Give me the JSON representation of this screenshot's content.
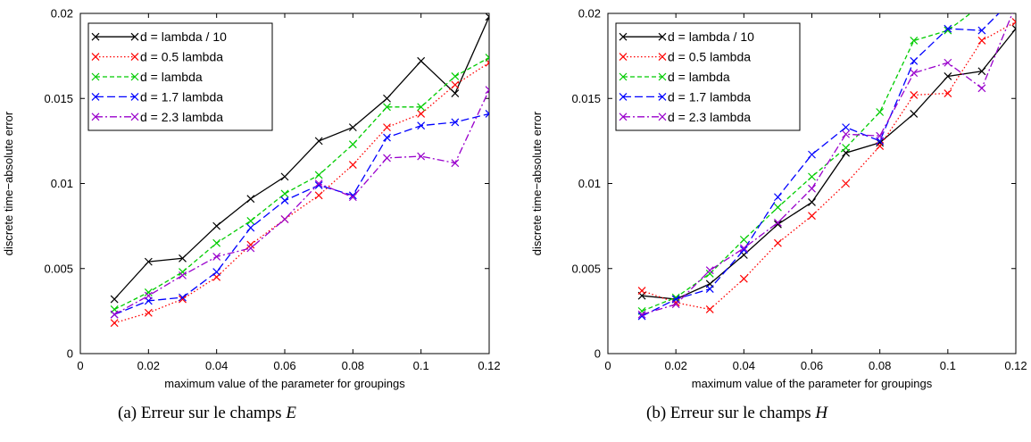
{
  "chart_data": [
    {
      "type": "line",
      "caption": {
        "prefix": "(a) Erreur sur le champs",
        "variable": "E"
      },
      "xlabel": "maximum value of the parameter for groupings",
      "ylabel": "discrete time−absolute error",
      "xlim": [
        0,
        0.12
      ],
      "ylim": [
        0,
        0.02
      ],
      "xticks": [
        0,
        0.02,
        0.04,
        0.06,
        0.08,
        0.1,
        0.12
      ],
      "xtick_labels": [
        "0",
        "0.02",
        "0.04",
        "0.06",
        "0.08",
        "0.1",
        "0.12"
      ],
      "yticks": [
        0,
        0.005,
        0.01,
        0.015,
        0.02
      ],
      "ytick_labels": [
        "0",
        "0.005",
        "0.01",
        "0.015",
        "0.02"
      ],
      "legend_position": "top-left",
      "x": [
        0.01,
        0.02,
        0.03,
        0.04,
        0.05,
        0.06,
        0.07,
        0.08,
        0.09,
        0.1,
        0.11,
        0.12
      ],
      "series": [
        {
          "name": "d = lambda / 10",
          "color": "#000000",
          "dash": "solid",
          "values": [
            0.0032,
            0.0054,
            0.0056,
            0.0075,
            0.0091,
            0.0104,
            0.0125,
            0.0133,
            0.015,
            0.0172,
            0.0153,
            0.0198
          ]
        },
        {
          "name": "d = 0.5 lambda",
          "color": "#ff0000",
          "dash": "dotted",
          "values": [
            0.0018,
            0.0024,
            0.0032,
            0.0045,
            0.0064,
            0.0079,
            0.0093,
            0.0111,
            0.0133,
            0.0141,
            0.0158,
            0.0171
          ]
        },
        {
          "name": "d =  lambda",
          "color": "#00cc00",
          "dash": "dashed",
          "values": [
            0.0026,
            0.0036,
            0.0048,
            0.0065,
            0.0078,
            0.0094,
            0.0105,
            0.0123,
            0.0145,
            0.0145,
            0.0163,
            0.0174
          ]
        },
        {
          "name": "d = 1.7 lambda",
          "color": "#0000ff",
          "dash": "longdash",
          "values": [
            0.0023,
            0.0031,
            0.0033,
            0.0048,
            0.0074,
            0.009,
            0.0099,
            0.0093,
            0.0127,
            0.0134,
            0.0136,
            0.0141
          ]
        },
        {
          "name": "d = 2.3 lambda",
          "color": "#9900cc",
          "dash": "dashdot",
          "values": [
            0.0023,
            0.0034,
            0.0046,
            0.0057,
            0.0062,
            0.0079,
            0.01,
            0.0092,
            0.0115,
            0.0116,
            0.0112,
            0.0155
          ]
        }
      ]
    },
    {
      "type": "line",
      "caption": {
        "prefix": "(b) Erreur sur le champs",
        "variable": "H"
      },
      "xlabel": "maximum value of the parameter for groupings",
      "ylabel": "discrete time−absolute error",
      "xlim": [
        0,
        0.12
      ],
      "ylim": [
        0,
        0.02
      ],
      "xticks": [
        0,
        0.02,
        0.04,
        0.06,
        0.08,
        0.1,
        0.12
      ],
      "xtick_labels": [
        "0",
        "0.02",
        "0.04",
        "0.06",
        "0.08",
        "0.1",
        "0.12"
      ],
      "yticks": [
        0,
        0.005,
        0.01,
        0.015,
        0.02
      ],
      "ytick_labels": [
        "0",
        "0.005",
        "0.01",
        "0.015",
        "0.02"
      ],
      "legend_position": "top-left",
      "x": [
        0.01,
        0.02,
        0.03,
        0.04,
        0.05,
        0.06,
        0.07,
        0.08,
        0.09,
        0.1,
        0.11,
        0.12
      ],
      "series": [
        {
          "name": "d = lambda / 10",
          "color": "#000000",
          "dash": "solid",
          "values": [
            0.0034,
            0.0032,
            0.0041,
            0.0058,
            0.0076,
            0.0089,
            0.0118,
            0.0124,
            0.0141,
            0.0163,
            0.0166,
            0.0191
          ]
        },
        {
          "name": "d = 0.5 lambda",
          "color": "#ff0000",
          "dash": "dotted",
          "values": [
            0.0037,
            0.003,
            0.0026,
            0.0044,
            0.0065,
            0.0081,
            0.01,
            0.0122,
            0.0152,
            0.0153,
            0.0184,
            0.0195
          ]
        },
        {
          "name": "d =  lambda",
          "color": "#00cc00",
          "dash": "dashed",
          "values": [
            0.0025,
            0.0033,
            0.0047,
            0.0067,
            0.0086,
            0.0104,
            0.0121,
            0.0142,
            0.0184,
            0.019,
            0.0205,
            0.022
          ]
        },
        {
          "name": "d = 1.7 lambda",
          "color": "#0000ff",
          "dash": "longdash",
          "values": [
            0.0022,
            0.0032,
            0.0038,
            0.0061,
            0.0092,
            0.0117,
            0.0133,
            0.0125,
            0.0172,
            0.0191,
            0.019,
            0.021
          ]
        },
        {
          "name": "d = 2.3 lambda",
          "color": "#9900cc",
          "dash": "dashdot",
          "values": [
            0.0023,
            0.0029,
            0.0049,
            0.0062,
            0.0077,
            0.0097,
            0.0129,
            0.0128,
            0.0165,
            0.0171,
            0.0156,
            0.0205
          ]
        }
      ]
    }
  ]
}
